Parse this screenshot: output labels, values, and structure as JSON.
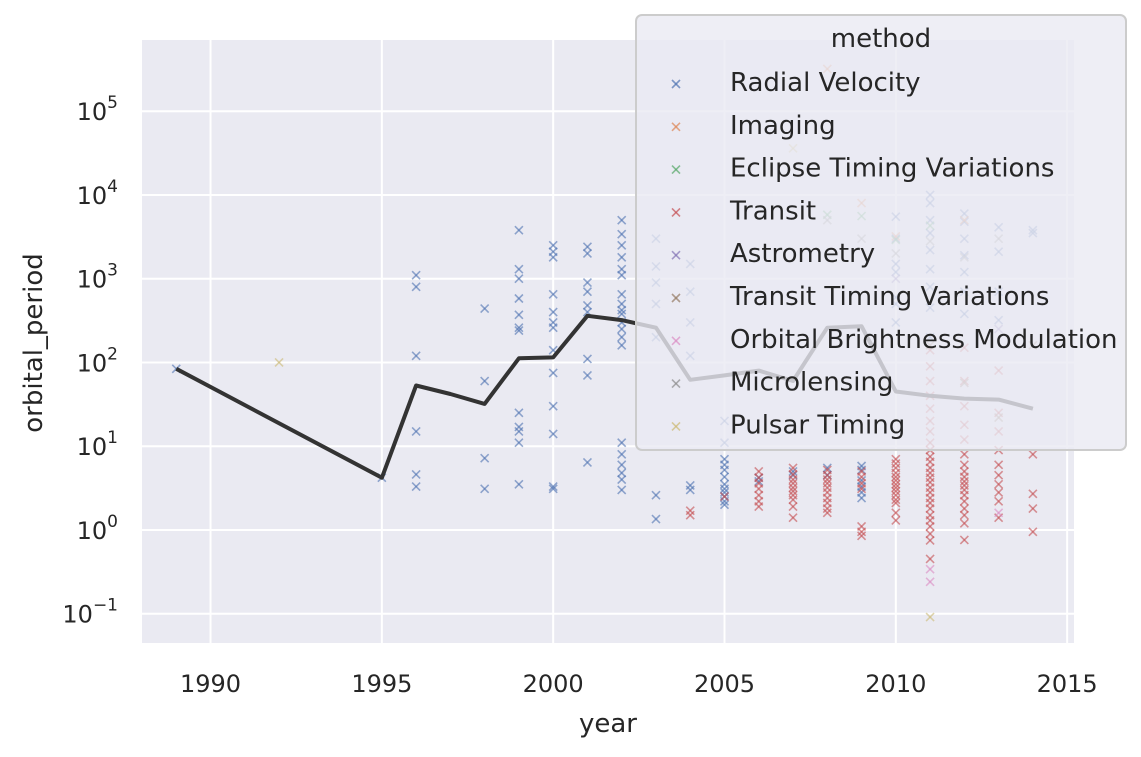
{
  "chart_data": {
    "type": "scatter",
    "xlabel": "year",
    "ylabel": "orbital_period",
    "xlim": [
      1988,
      2015.2
    ],
    "yscale": "log",
    "ylim_log10": [
      -1.35,
      5.85
    ],
    "xticks": [
      1990,
      1995,
      2000,
      2005,
      2010,
      2015
    ],
    "yticks_exp": [
      -1,
      0,
      1,
      2,
      3,
      4,
      5
    ],
    "yticks_base": "10",
    "grid": true,
    "legend": {
      "title": "method",
      "placement": "upper-right",
      "entries": [
        {
          "name": "Radial Velocity",
          "color": "#4c72b0"
        },
        {
          "name": "Imaging",
          "color": "#dd8452"
        },
        {
          "name": "Eclipse Timing Variations",
          "color": "#55a868"
        },
        {
          "name": "Transit",
          "color": "#c44e52"
        },
        {
          "name": "Astrometry",
          "color": "#8172b3"
        },
        {
          "name": "Transit Timing Variations",
          "color": "#937860"
        },
        {
          "name": "Orbital Brightness Modulation",
          "color": "#da8bc3"
        },
        {
          "name": "Microlensing",
          "color": "#8c8c8c"
        },
        {
          "name": "Pulsar Timing",
          "color": "#ccb974"
        }
      ]
    },
    "series": [
      {
        "name": "Radial Velocity",
        "color": "#4c72b0",
        "marker": "x",
        "points": [
          [
            1989,
            84
          ],
          [
            1995,
            4.2
          ],
          [
            1996,
            1100
          ],
          [
            1996,
            800
          ],
          [
            1996,
            120
          ],
          [
            1996,
            15
          ],
          [
            1996,
            4.6
          ],
          [
            1996,
            3.3
          ],
          [
            1998,
            440
          ],
          [
            1998,
            60
          ],
          [
            1998,
            7.2
          ],
          [
            1998,
            3.1
          ],
          [
            1999,
            3800
          ],
          [
            1999,
            1300
          ],
          [
            1999,
            1000
          ],
          [
            1999,
            580
          ],
          [
            1999,
            370
          ],
          [
            1999,
            260
          ],
          [
            1999,
            240
          ],
          [
            1999,
            25
          ],
          [
            1999,
            17
          ],
          [
            1999,
            15
          ],
          [
            1999,
            11
          ],
          [
            1999,
            3.5
          ],
          [
            2000,
            2500
          ],
          [
            2000,
            2100
          ],
          [
            2000,
            1800
          ],
          [
            2000,
            650
          ],
          [
            2000,
            400
          ],
          [
            2000,
            300
          ],
          [
            2000,
            260
          ],
          [
            2000,
            140
          ],
          [
            2000,
            75
          ],
          [
            2000,
            30
          ],
          [
            2000,
            14
          ],
          [
            2000,
            3.3
          ],
          [
            2000,
            3.1
          ],
          [
            2001,
            2400
          ],
          [
            2001,
            2000
          ],
          [
            2001,
            900
          ],
          [
            2001,
            700
          ],
          [
            2001,
            480
          ],
          [
            2001,
            400
          ],
          [
            2001,
            110
          ],
          [
            2001,
            70
          ],
          [
            2001,
            6.4
          ],
          [
            2002,
            5000
          ],
          [
            2002,
            3400
          ],
          [
            2002,
            2500
          ],
          [
            2002,
            1800
          ],
          [
            2002,
            1300
          ],
          [
            2002,
            1100
          ],
          [
            2002,
            650
          ],
          [
            2002,
            500
          ],
          [
            2002,
            420
          ],
          [
            2002,
            380
          ],
          [
            2002,
            300
          ],
          [
            2002,
            250
          ],
          [
            2002,
            200
          ],
          [
            2002,
            160
          ],
          [
            2002,
            11
          ],
          [
            2002,
            8
          ],
          [
            2002,
            6
          ],
          [
            2002,
            4.8
          ],
          [
            2002,
            4
          ],
          [
            2002,
            3
          ],
          [
            2003,
            3000
          ],
          [
            2003,
            1400
          ],
          [
            2003,
            900
          ],
          [
            2003,
            500
          ],
          [
            2003,
            200
          ],
          [
            2003,
            2.6
          ],
          [
            2003,
            1.35
          ],
          [
            2004,
            1500
          ],
          [
            2004,
            700
          ],
          [
            2004,
            300
          ],
          [
            2004,
            120
          ],
          [
            2004,
            3.4
          ],
          [
            2004,
            3.0
          ],
          [
            2005,
            20
          ],
          [
            2005,
            11
          ],
          [
            2005,
            7
          ],
          [
            2005,
            6
          ],
          [
            2005,
            5.2
          ],
          [
            2005,
            4.3
          ],
          [
            2005,
            3.5
          ],
          [
            2005,
            3.1
          ],
          [
            2005,
            2.8
          ],
          [
            2005,
            2.5
          ],
          [
            2005,
            2.2
          ],
          [
            2005,
            2
          ],
          [
            2006,
            4.2
          ],
          [
            2006,
            3.8
          ],
          [
            2007,
            5
          ],
          [
            2007,
            4.5
          ],
          [
            2008,
            5.5
          ],
          [
            2008,
            4.5
          ],
          [
            2009,
            5.8
          ],
          [
            2009,
            5.2
          ],
          [
            2009,
            3.9
          ],
          [
            2009,
            3.3
          ],
          [
            2009,
            2.8
          ],
          [
            2009,
            2.4
          ],
          [
            2010,
            5500
          ],
          [
            2010,
            3000
          ],
          [
            2010,
            1500
          ],
          [
            2010,
            1200
          ],
          [
            2010,
            600
          ],
          [
            2010,
            500
          ],
          [
            2010,
            300
          ],
          [
            2011,
            10000
          ],
          [
            2011,
            8000
          ],
          [
            2011,
            5000
          ],
          [
            2011,
            3500
          ],
          [
            2011,
            2200
          ],
          [
            2011,
            1300
          ],
          [
            2011,
            800
          ],
          [
            2011,
            450
          ],
          [
            2011,
            200
          ],
          [
            2012,
            6000
          ],
          [
            2012,
            4800
          ],
          [
            2012,
            3000
          ],
          [
            2012,
            1900
          ],
          [
            2012,
            1200
          ],
          [
            2012,
            700
          ],
          [
            2012,
            380
          ],
          [
            2013,
            4100
          ],
          [
            2013,
            2100
          ],
          [
            2013,
            700
          ],
          [
            2013,
            320
          ],
          [
            2014,
            3800
          ],
          [
            2014,
            3500
          ]
        ]
      },
      {
        "name": "Transit",
        "color": "#c44e52",
        "marker": "x",
        "points": [
          [
            2004,
            1.7
          ],
          [
            2004,
            1.5
          ],
          [
            2005,
            2.5
          ],
          [
            2006,
            5
          ],
          [
            2006,
            4.2
          ],
          [
            2006,
            3.6
          ],
          [
            2006,
            3.1
          ],
          [
            2006,
            2.6
          ],
          [
            2006,
            2.2
          ],
          [
            2006,
            1.9
          ],
          [
            2007,
            5.5
          ],
          [
            2007,
            4.6
          ],
          [
            2007,
            4
          ],
          [
            2007,
            3.6
          ],
          [
            2007,
            3.2
          ],
          [
            2007,
            2.9
          ],
          [
            2007,
            2.6
          ],
          [
            2007,
            2.3
          ],
          [
            2007,
            1.9
          ],
          [
            2007,
            1.4
          ],
          [
            2008,
            5.2
          ],
          [
            2008,
            4.5
          ],
          [
            2008,
            4
          ],
          [
            2008,
            3.6
          ],
          [
            2008,
            3.2
          ],
          [
            2008,
            2.8
          ],
          [
            2008,
            2.4
          ],
          [
            2008,
            2.1
          ],
          [
            2008,
            1.8
          ],
          [
            2008,
            1.6
          ],
          [
            2009,
            5
          ],
          [
            2009,
            4.3
          ],
          [
            2009,
            3.6
          ],
          [
            2009,
            3.1
          ],
          [
            2009,
            1.1
          ],
          [
            2009,
            0.95
          ],
          [
            2009,
            0.85
          ],
          [
            2010,
            7
          ],
          [
            2010,
            6.2
          ],
          [
            2010,
            5.5
          ],
          [
            2010,
            4.8
          ],
          [
            2010,
            4.3
          ],
          [
            2010,
            3.9
          ],
          [
            2010,
            3.5
          ],
          [
            2010,
            3.2
          ],
          [
            2010,
            2.9
          ],
          [
            2010,
            2.6
          ],
          [
            2010,
            2.3
          ],
          [
            2010,
            2.1
          ],
          [
            2010,
            1.6
          ],
          [
            2010,
            1.3
          ],
          [
            2011,
            140
          ],
          [
            2011,
            90
          ],
          [
            2011,
            60
          ],
          [
            2011,
            40
          ],
          [
            2011,
            28
          ],
          [
            2011,
            20
          ],
          [
            2011,
            15
          ],
          [
            2011,
            11
          ],
          [
            2011,
            9
          ],
          [
            2011,
            7.5
          ],
          [
            2011,
            6.5
          ],
          [
            2011,
            5.5
          ],
          [
            2011,
            4.8
          ],
          [
            2011,
            4.2
          ],
          [
            2011,
            3.7
          ],
          [
            2011,
            3.2
          ],
          [
            2011,
            2.8
          ],
          [
            2011,
            2.4
          ],
          [
            2011,
            2.1
          ],
          [
            2011,
            1.8
          ],
          [
            2011,
            1.5
          ],
          [
            2011,
            1.3
          ],
          [
            2011,
            1.1
          ],
          [
            2011,
            0.9
          ],
          [
            2011,
            0.75
          ],
          [
            2011,
            0.45
          ],
          [
            2012,
            150
          ],
          [
            2012,
            60
          ],
          [
            2012,
            30
          ],
          [
            2012,
            18
          ],
          [
            2012,
            12
          ],
          [
            2012,
            8
          ],
          [
            2012,
            6
          ],
          [
            2012,
            5
          ],
          [
            2012,
            4.3
          ],
          [
            2012,
            3.8
          ],
          [
            2012,
            3.4
          ],
          [
            2012,
            3
          ],
          [
            2012,
            2.6
          ],
          [
            2012,
            2.2
          ],
          [
            2012,
            1.8
          ],
          [
            2012,
            1.5
          ],
          [
            2012,
            1.2
          ],
          [
            2012,
            0.76
          ],
          [
            2013,
            80
          ],
          [
            2013,
            25
          ],
          [
            2013,
            15
          ],
          [
            2013,
            9
          ],
          [
            2013,
            6
          ],
          [
            2013,
            4.5
          ],
          [
            2013,
            3.5
          ],
          [
            2013,
            2.8
          ],
          [
            2013,
            2.2
          ],
          [
            2013,
            1.4
          ],
          [
            2014,
            8
          ],
          [
            2014,
            2.7
          ],
          [
            2014,
            1.8
          ],
          [
            2014,
            0.95
          ]
        ]
      },
      {
        "name": "Imaging",
        "color": "#dd8452",
        "marker": "x",
        "points": [
          [
            2008,
            320000
          ],
          [
            2009,
            8000
          ],
          [
            2010,
            3200
          ],
          [
            2012,
            5000
          ]
        ]
      },
      {
        "name": "Eclipse Timing Variations",
        "color": "#55a868",
        "marker": "x",
        "points": [
          [
            2008,
            5800
          ],
          [
            2009,
            5600
          ],
          [
            2010,
            2900
          ],
          [
            2011,
            4300
          ]
        ]
      },
      {
        "name": "Astrometry",
        "color": "#8172b3",
        "marker": "x",
        "points": [
          [
            2010,
            1000
          ],
          [
            2013,
            250
          ]
        ]
      },
      {
        "name": "Transit Timing Variations",
        "color": "#937860",
        "marker": "x",
        "points": [
          [
            2011,
            160
          ],
          [
            2012,
            57
          ],
          [
            2013,
            22
          ],
          [
            2014,
            160
          ]
        ]
      },
      {
        "name": "Orbital Brightness Modulation",
        "color": "#da8bc3",
        "marker": "x",
        "points": [
          [
            2011,
            0.34
          ],
          [
            2011,
            0.24
          ],
          [
            2013,
            1.6
          ]
        ]
      },
      {
        "name": "Microlensing",
        "color": "#8c8c8c",
        "marker": "x",
        "points": [
          [
            2008,
            5000
          ],
          [
            2009,
            3000
          ],
          [
            2010,
            2000
          ],
          [
            2011,
            2800
          ],
          [
            2012,
            1800
          ],
          [
            2013,
            3000
          ]
        ]
      },
      {
        "name": "Pulsar Timing",
        "color": "#ccb974",
        "marker": "x",
        "points": [
          [
            2011,
            0.091
          ],
          [
            2007,
            36000
          ],
          [
            1992,
            100
          ]
        ]
      }
    ],
    "mean_line": {
      "color": "#333333",
      "points": [
        [
          1989,
          84
        ],
        [
          1995,
          4.2
        ],
        [
          1996,
          53
        ],
        [
          1997,
          42
        ],
        [
          1998,
          32
        ],
        [
          1999,
          112
        ],
        [
          2000,
          115
        ],
        [
          2001,
          360
        ],
        [
          2002,
          320
        ],
        [
          2003,
          260
        ],
        [
          2004,
          62
        ],
        [
          2005,
          70
        ],
        [
          2006,
          80
        ],
        [
          2007,
          60
        ],
        [
          2008,
          260
        ],
        [
          2009,
          270
        ],
        [
          2010,
          45
        ],
        [
          2011,
          40
        ],
        [
          2012,
          37
        ],
        [
          2013,
          36
        ],
        [
          2014,
          28
        ]
      ]
    }
  }
}
